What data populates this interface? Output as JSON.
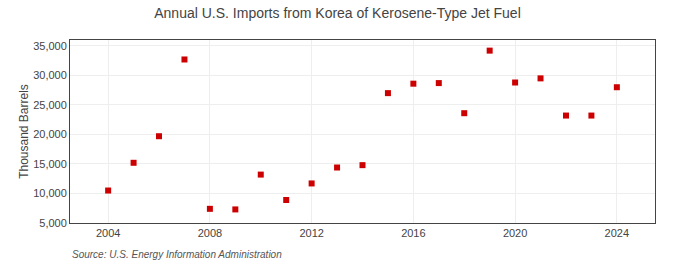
{
  "chart_data": {
    "type": "scatter",
    "title": "Annual U.S. Imports from Korea of Kerosene-Type Jet Fuel",
    "ylabel": "Thousand Barrels",
    "annotations": [
      "Source: U.S. Energy Information Administration"
    ],
    "x": [
      2004,
      2005,
      2006,
      2007,
      2008,
      2009,
      2010,
      2011,
      2012,
      2013,
      2014,
      2015,
      2016,
      2017,
      2018,
      2019,
      2020,
      2021,
      2022,
      2023,
      2024
    ],
    "values": [
      10500,
      15200,
      19700,
      32700,
      7400,
      7300,
      13200,
      8900,
      11700,
      14400,
      14800,
      27000,
      28600,
      28700,
      23600,
      34200,
      28800,
      29500,
      23200,
      23200,
      28000
    ],
    "color": "#cc0000",
    "marker": "square",
    "xlim": [
      2002.5,
      2025.5
    ],
    "ylim": [
      5000,
      36000
    ],
    "xticks": [
      2004,
      2008,
      2012,
      2016,
      2020,
      2024
    ],
    "yticks": [
      {
        "value": 5000,
        "label": "5,000"
      },
      {
        "value": 10000,
        "label": "10,000"
      },
      {
        "value": 15000,
        "label": "15,000"
      },
      {
        "value": 20000,
        "label": "20,000"
      },
      {
        "value": 25000,
        "label": "25,000"
      },
      {
        "value": 30000,
        "label": "30,000"
      },
      {
        "value": 35000,
        "label": "35,000"
      }
    ],
    "grid": true
  }
}
